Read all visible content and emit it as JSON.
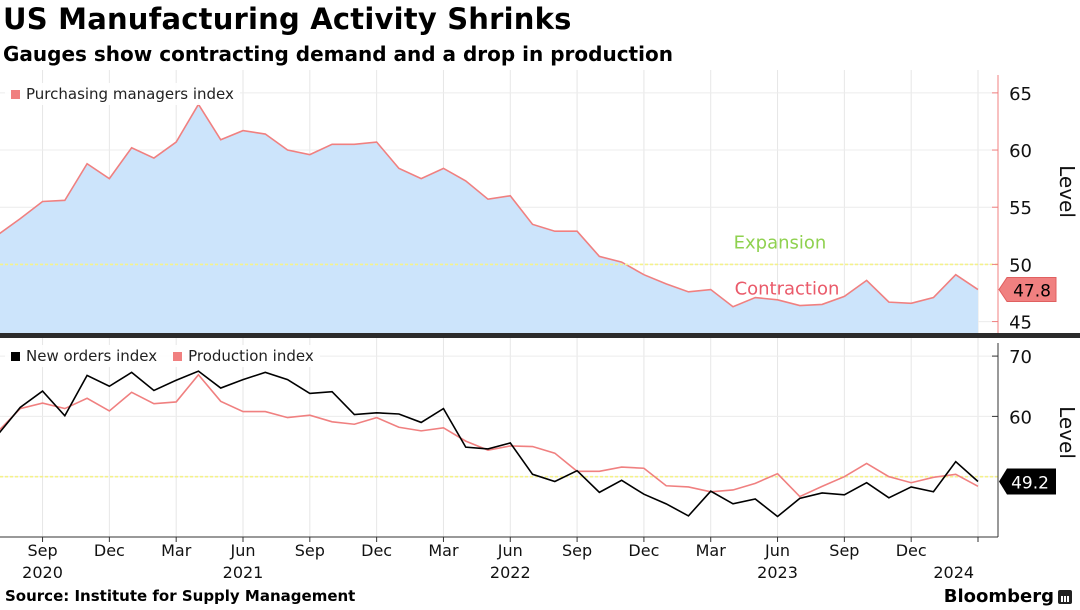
{
  "title": "US Manufacturing Activity Shrinks",
  "subtitle": "Gauges show contracting demand and a drop in production",
  "source": "Source: Institute for Supply Management",
  "brand": "Bloomberg",
  "colors": {
    "pmi_line": "#f08080",
    "pmi_fill": "#cce4fb",
    "new_orders": "#000000",
    "production": "#f08080",
    "threshold": "#f5f28a",
    "expansion_text": "#8fd14f",
    "contraction_text": "#ea5a6a"
  },
  "chart_data": [
    {
      "type": "area",
      "series": [
        {
          "name": "Purchasing managers index",
          "values": [
            52.6,
            54.0,
            55.5,
            55.6,
            58.8,
            57.5,
            60.2,
            59.3,
            60.7,
            64.0,
            60.9,
            61.7,
            61.4,
            60.0,
            59.6,
            60.5,
            60.5,
            60.7,
            58.4,
            57.5,
            58.4,
            57.3,
            55.7,
            56.0,
            53.5,
            52.9,
            52.9,
            50.7,
            50.2,
            49.1,
            48.3,
            47.6,
            47.8,
            46.3,
            47.1,
            46.9,
            46.4,
            46.5,
            47.2,
            48.6,
            46.7,
            46.6,
            47.1,
            49.1,
            47.8
          ]
        }
      ],
      "x_labels": [
        "Sep",
        "Dec",
        "Mar",
        "Jun",
        "Sep",
        "Dec",
        "Mar",
        "Jun",
        "Sep",
        "Dec",
        "Mar",
        "Jun",
        "Sep",
        "Dec"
      ],
      "year_labels": [
        "2020",
        "2021",
        "2022",
        "2023",
        "2024"
      ],
      "ylabel": "Level",
      "ylim": [
        44,
        67
      ],
      "yticks": [
        45,
        50,
        55,
        60,
        65
      ],
      "threshold": 50,
      "annotations": [
        "Expansion",
        "Contraction"
      ],
      "last_value_label": "47.8",
      "legend": "top-left"
    },
    {
      "type": "line",
      "series": [
        {
          "name": "New orders index",
          "values": [
            57.0,
            61.5,
            64.2,
            60.1,
            66.8,
            65.0,
            67.3,
            64.3,
            66.0,
            67.5,
            64.7,
            66.1,
            67.3,
            66.1,
            63.8,
            64.1,
            60.3,
            60.6,
            60.4,
            59.0,
            61.3,
            54.9,
            54.6,
            55.6,
            50.4,
            49.2,
            51.0,
            47.4,
            49.4,
            47.1,
            45.5,
            43.5,
            47.6,
            45.5,
            46.3,
            43.4,
            46.4,
            47.3,
            47.0,
            49.0,
            46.5,
            48.3,
            47.5,
            52.5,
            49.2
          ]
        },
        {
          "name": "Production index",
          "values": [
            57.5,
            61.3,
            62.2,
            61.3,
            63.0,
            60.9,
            64.0,
            62.1,
            62.4,
            66.9,
            62.5,
            60.8,
            60.8,
            59.8,
            60.2,
            59.1,
            58.7,
            59.8,
            58.2,
            57.6,
            58.1,
            55.9,
            54.4,
            55.1,
            55.0,
            53.9,
            50.9,
            50.9,
            51.6,
            51.4,
            48.5,
            48.3,
            47.5,
            47.8,
            48.9,
            50.5,
            46.7,
            48.4,
            50.0,
            52.2,
            50.0,
            49.0,
            49.9,
            50.4,
            48.4
          ]
        }
      ],
      "ylabel": "Level",
      "ylim": [
        40,
        73
      ],
      "yticks": [
        60,
        70
      ],
      "threshold": 50,
      "last_value_label": "49.2",
      "legend": "top-left"
    }
  ]
}
